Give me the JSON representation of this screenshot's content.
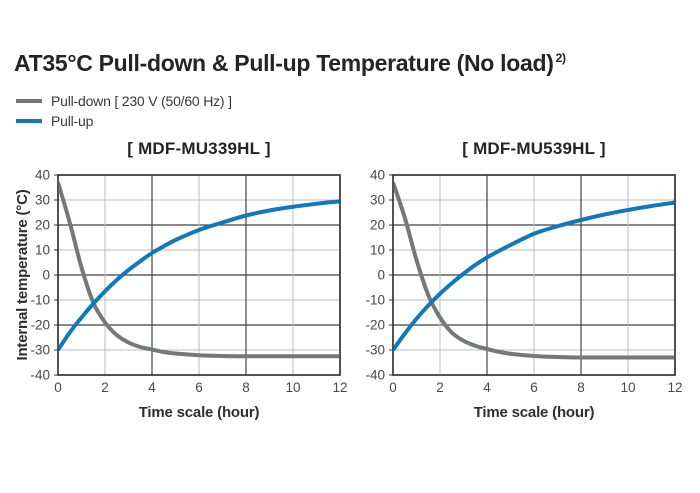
{
  "page": {
    "title": "AT35°C Pull-down & Pull-up Temperature (No load)",
    "title_superscript": "2)"
  },
  "legend": {
    "items": [
      {
        "name": "pull-down",
        "label": "Pull-down [ 230 V (50/60 Hz) ]",
        "color": "#76777a"
      },
      {
        "name": "pull-up",
        "label": "Pull-up",
        "color": "#1178ba"
      }
    ]
  },
  "colors": {
    "curve_pulldown": "#76777a",
    "curve_pullup": "#1178ba",
    "grid_minor": "#bbbcbe",
    "grid_major": "#414244",
    "frame": "#333436",
    "tick_text": "#47484a",
    "title_text": "#232426"
  },
  "chart_data": [
    {
      "type": "line",
      "title": "[ MDF-MU339HL ]",
      "xlabel": "Time scale (hour)",
      "ylabel": "Internal temperature (°C)",
      "xlim": [
        0,
        12
      ],
      "ylim": [
        -40,
        40
      ],
      "xticks": [
        0,
        2,
        4,
        6,
        8,
        10,
        12
      ],
      "yticks": [
        40,
        30,
        20,
        10,
        0,
        -10,
        -20,
        -30,
        -40
      ],
      "x_major_gridlines": [
        4,
        8
      ],
      "y_major_gridlines": [
        20,
        0,
        -20
      ],
      "grid": true,
      "legend_position": "none",
      "series": [
        {
          "name": "Pull-down",
          "color": "#76777a",
          "x": [
            0,
            0.5,
            1,
            1.5,
            2,
            2.5,
            3,
            3.5,
            4,
            4.5,
            5,
            6,
            7,
            8,
            9,
            10,
            11,
            12
          ],
          "y": [
            37,
            21,
            3,
            -11,
            -19,
            -24,
            -27,
            -28.8,
            -29.8,
            -30.8,
            -31.4,
            -32.1,
            -32.4,
            -32.5,
            -32.5,
            -32.5,
            -32.5,
            -32.5
          ]
        },
        {
          "name": "Pull-up",
          "color": "#1178ba",
          "x": [
            0,
            0.5,
            1,
            1.5,
            2,
            2.5,
            3,
            3.5,
            4,
            4.5,
            5,
            6,
            7,
            8,
            9,
            10,
            11,
            12
          ],
          "y": [
            -30,
            -23,
            -17,
            -11.5,
            -6.5,
            -2,
            2,
            5.5,
            8.8,
            11.5,
            14,
            18,
            21,
            23.8,
            25.8,
            27.3,
            28.5,
            29.5
          ]
        }
      ]
    },
    {
      "type": "line",
      "title": "[ MDF-MU539HL ]",
      "xlabel": "Time scale (hour)",
      "ylabel": "",
      "xlim": [
        0,
        12
      ],
      "ylim": [
        -40,
        40
      ],
      "xticks": [
        0,
        2,
        4,
        6,
        8,
        10,
        12
      ],
      "yticks": [
        40,
        30,
        20,
        10,
        0,
        -10,
        -20,
        -30,
        -40
      ],
      "x_major_gridlines": [
        4,
        8
      ],
      "y_major_gridlines": [
        20,
        0,
        -20
      ],
      "grid": true,
      "legend_position": "none",
      "series": [
        {
          "name": "Pull-down",
          "color": "#76777a",
          "x": [
            0,
            0.5,
            1,
            1.5,
            2,
            2.5,
            3,
            3.5,
            4,
            4.5,
            5,
            6,
            7,
            8,
            9,
            10,
            11,
            12
          ],
          "y": [
            37,
            23,
            6,
            -8,
            -17,
            -23,
            -26.3,
            -28.3,
            -29.6,
            -30.7,
            -31.5,
            -32.4,
            -32.8,
            -33,
            -33,
            -33,
            -33,
            -33
          ]
        },
        {
          "name": "Pull-up",
          "color": "#1178ba",
          "x": [
            0,
            0.5,
            1,
            1.5,
            2,
            2.5,
            3,
            3.5,
            4,
            4.5,
            5,
            6,
            7,
            8,
            9,
            10,
            11,
            12
          ],
          "y": [
            -30,
            -23.5,
            -17.5,
            -12.2,
            -7.5,
            -3.3,
            0.5,
            4,
            7,
            9.6,
            12,
            16.5,
            19.5,
            22,
            24.2,
            26,
            27.6,
            29
          ]
        }
      ]
    }
  ]
}
